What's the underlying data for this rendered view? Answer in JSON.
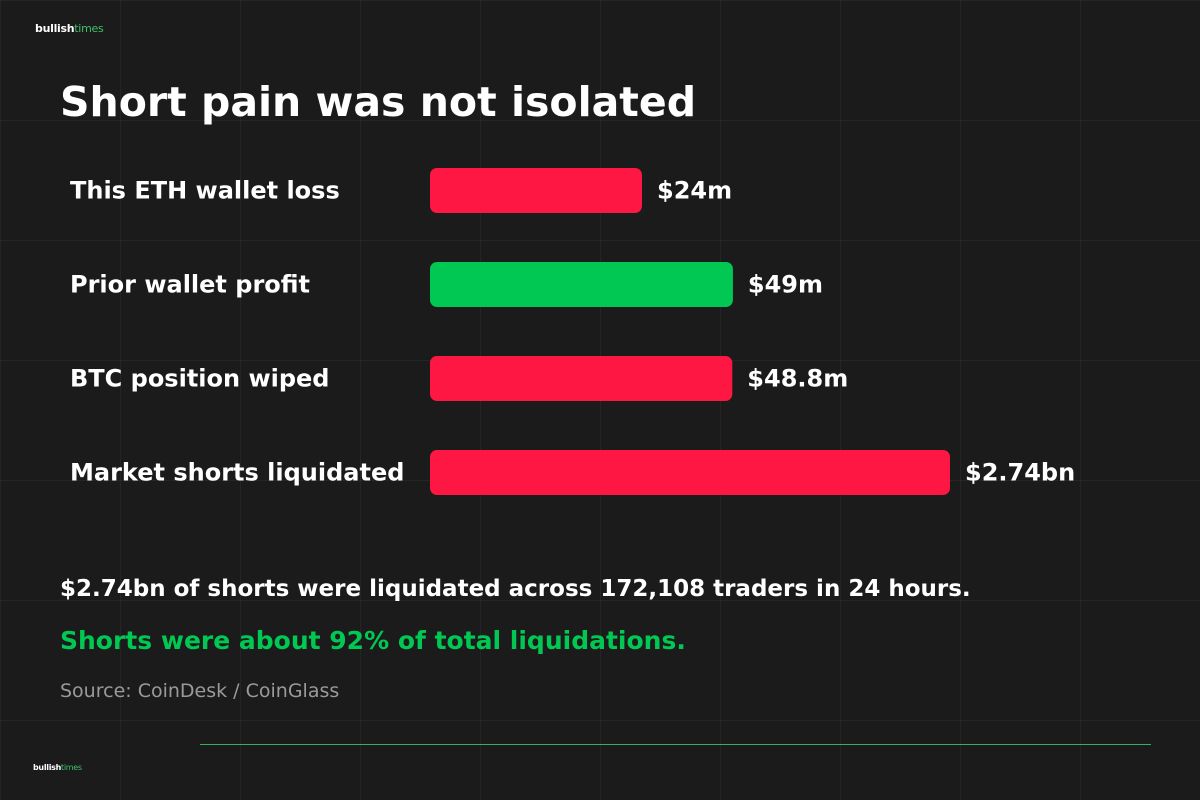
{
  "brand": {
    "logo_bold": "bullish",
    "logo_thin": "times",
    "accent_color": "#3ec26b"
  },
  "header": {
    "title": "Short pain was not isolated"
  },
  "chart_data": {
    "type": "bar",
    "orientation": "horizontal",
    "categories": [
      "This ETH wallet loss",
      "Prior wallet profit",
      "BTC position wiped",
      "Market shorts liquidated"
    ],
    "values": [
      24,
      49,
      48.8,
      2740
    ],
    "value_labels": [
      "$24m",
      "$49m",
      "$48.8m",
      "$2.74bn"
    ],
    "unit": "$m",
    "bar_colors": [
      "#ff1744",
      "#00c853",
      "#ff1744",
      "#ff1744"
    ],
    "grid": false,
    "legend": "none"
  },
  "footer": {
    "summary": "$2.74bn of shorts were liquidated across 172,108 traders in 24 hours.",
    "highlight": "Shorts were about 92% of total liquidations.",
    "source": "Source: CoinDesk / CoinGlass"
  },
  "colors": {
    "background": "#1b1b1b",
    "loss": "#ff1744",
    "profit": "#00c853",
    "muted_text": "#9a9a9a"
  }
}
